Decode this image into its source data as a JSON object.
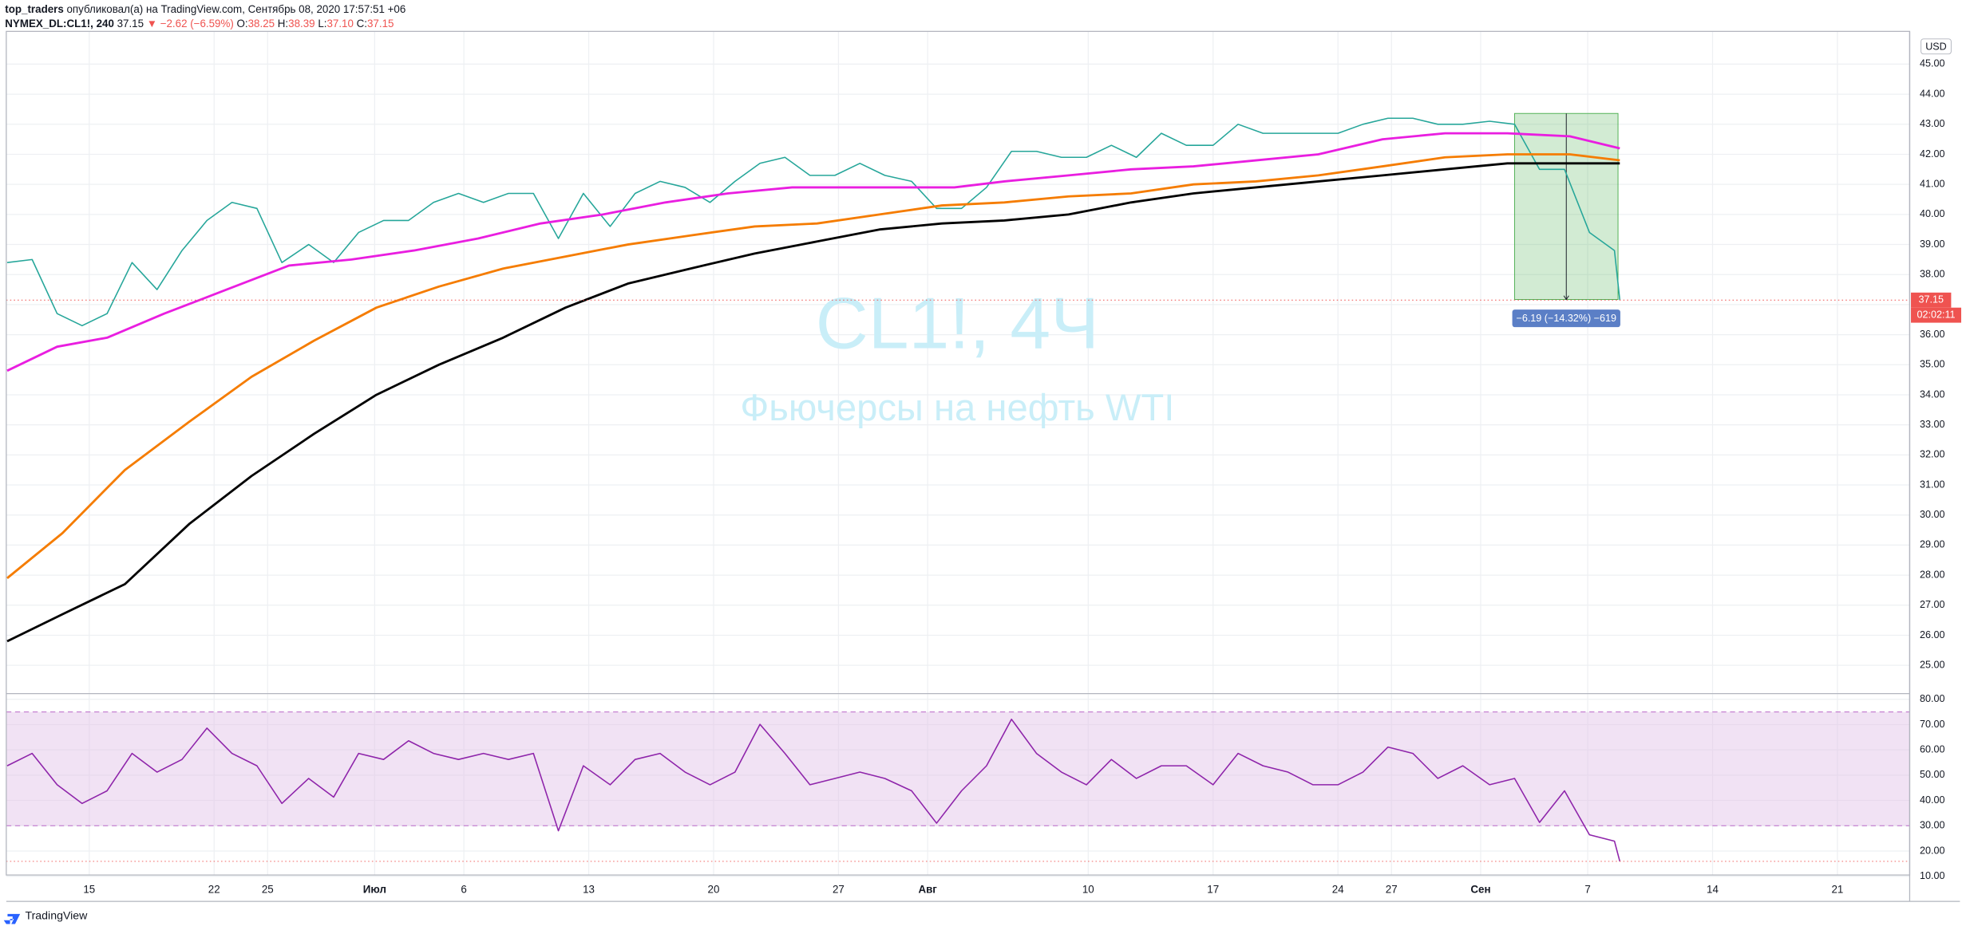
{
  "header": {
    "author": "top_traders",
    "published": "опубликовал(а) на TradingView.com, Сентябрь 08, 2020 17:57:51 +06",
    "symbol": "NYMEX_DL:CL1!, 240",
    "last": "37.15",
    "change": "▼ −2.62 (−6.59%)",
    "ohlc": [
      [
        "O:",
        "38.25"
      ],
      [
        "H:",
        "38.39"
      ],
      [
        "L:",
        "37.10"
      ],
      [
        "C:",
        "37.15"
      ]
    ],
    "footer": "TradingView"
  },
  "chart_data": [
    {
      "type": "line",
      "title": "CL1!, 4Ч",
      "subtitle": "Фьючерсы на нефть WTI",
      "y_axis_label": "USD",
      "price_label": "37.15",
      "countdown": "02:02:11",
      "xlim": [
        10.35,
        117.05
      ],
      "ylim": [
        24.08,
        46.09
      ],
      "yticks": [
        {
          "value": 25,
          "label": "25.00"
        },
        {
          "value": 26,
          "label": "26.00"
        },
        {
          "value": 27,
          "label": "27.00"
        },
        {
          "value": 28,
          "label": "28.00"
        },
        {
          "value": 29,
          "label": "29.00"
        },
        {
          "value": 30,
          "label": "30.00"
        },
        {
          "value": 31,
          "label": "31.00"
        },
        {
          "value": 32,
          "label": "32.00"
        },
        {
          "value": 33,
          "label": "33.00"
        },
        {
          "value": 34,
          "label": "34.00"
        },
        {
          "value": 35,
          "label": "35.00"
        },
        {
          "value": 36,
          "label": "36.00"
        },
        {
          "value": 37,
          "label": "37.00"
        },
        {
          "value": 38,
          "label": "38.00"
        },
        {
          "value": 39,
          "label": "39.00"
        },
        {
          "value": 40,
          "label": "40.00"
        },
        {
          "value": 41,
          "label": "41.00"
        },
        {
          "value": 42,
          "label": "42.00"
        },
        {
          "value": 43,
          "label": "43.00"
        },
        {
          "value": 44,
          "label": "44.00"
        },
        {
          "value": 45,
          "label": "45.00"
        }
      ],
      "grid": true,
      "series": [
        {
          "color": "#26a69a",
          "x": [
            10.4,
            11.8,
            13.2,
            14.6,
            16.0,
            17.4,
            18.8,
            20.2,
            21.6,
            23.0,
            24.4,
            25.8,
            27.3,
            28.7,
            30.1,
            31.5,
            32.9,
            34.3,
            35.7,
            37.1,
            38.5,
            39.9,
            41.3,
            42.7,
            44.2,
            45.6,
            47.0,
            48.4,
            49.8,
            51.2,
            52.6,
            54.0,
            55.4,
            56.8,
            58.2,
            59.6,
            61.1,
            62.5,
            63.9,
            65.3,
            66.7,
            68.1,
            69.5,
            70.9,
            72.3,
            73.7,
            75.1,
            76.5,
            78.0,
            79.4,
            80.8,
            82.2,
            83.6,
            85.0,
            86.4,
            87.8,
            89.2,
            90.6,
            92.0,
            93.5,
            94.9,
            96.3,
            97.7,
            99.1,
            100.5,
            100.8
          ],
          "values": [
            38.4,
            38.5,
            36.7,
            36.3,
            36.7,
            38.4,
            37.5,
            38.8,
            39.8,
            40.4,
            40.2,
            38.4,
            39.0,
            38.4,
            39.4,
            39.8,
            39.8,
            40.4,
            40.7,
            40.4,
            40.7,
            40.7,
            39.2,
            40.7,
            39.6,
            40.7,
            41.1,
            40.9,
            40.4,
            41.1,
            41.7,
            41.9,
            41.3,
            41.3,
            41.7,
            41.3,
            41.1,
            40.2,
            40.2,
            40.9,
            42.1,
            42.1,
            41.9,
            41.9,
            42.3,
            41.9,
            42.7,
            42.3,
            42.3,
            43.0,
            42.7,
            42.7,
            42.7,
            42.7,
            43.0,
            43.2,
            43.2,
            43.0,
            43.0,
            43.1,
            43.0,
            41.5,
            41.5,
            39.4,
            38.8,
            37.15
          ]
        },
        {
          "color": "#e91ee0",
          "x": [
            10.4,
            13.2,
            16.0,
            19.2,
            22.7,
            26.2,
            29.7,
            33.2,
            36.8,
            40.3,
            43.8,
            47.3,
            50.8,
            54.4,
            59.3,
            63.5,
            66.3,
            69.9,
            73.4,
            76.9,
            80.4,
            83.9,
            87.5,
            91.0,
            94.5,
            98.0,
            100.8
          ],
          "values": [
            34.8,
            35.6,
            35.9,
            36.7,
            37.5,
            38.3,
            38.5,
            38.8,
            39.2,
            39.7,
            40.0,
            40.4,
            40.7,
            40.9,
            40.9,
            40.9,
            41.1,
            41.3,
            41.5,
            41.6,
            41.8,
            42.0,
            42.5,
            42.7,
            42.7,
            42.6,
            42.2
          ]
        },
        {
          "color": "#f57c00",
          "x": [
            10.4,
            13.5,
            17.0,
            20.6,
            24.1,
            27.6,
            31.1,
            34.6,
            38.2,
            41.7,
            45.2,
            48.7,
            52.3,
            55.8,
            59.3,
            62.8,
            66.3,
            69.9,
            73.4,
            76.9,
            80.4,
            83.9,
            87.5,
            91.0,
            94.5,
            98.0,
            100.8
          ],
          "values": [
            27.9,
            29.4,
            31.5,
            33.1,
            34.6,
            35.8,
            36.9,
            37.6,
            38.2,
            38.6,
            39.0,
            39.3,
            39.6,
            39.7,
            40.0,
            40.3,
            40.4,
            40.6,
            40.7,
            41.0,
            41.1,
            41.3,
            41.6,
            41.9,
            42.0,
            42.0,
            41.8
          ]
        },
        {
          "color": "#000000",
          "x": [
            10.4,
            13.5,
            17.0,
            20.6,
            24.1,
            27.6,
            31.1,
            34.6,
            38.2,
            41.7,
            45.2,
            48.7,
            52.3,
            55.8,
            59.3,
            62.8,
            66.3,
            69.9,
            73.4,
            76.9,
            80.4,
            83.9,
            87.5,
            91.0,
            94.5,
            98.0,
            100.8
          ],
          "values": [
            25.8,
            26.7,
            27.7,
            29.7,
            31.3,
            32.7,
            34.0,
            35.0,
            35.9,
            36.9,
            37.7,
            38.2,
            38.7,
            39.1,
            39.5,
            39.7,
            39.8,
            40.0,
            40.4,
            40.7,
            40.9,
            41.1,
            41.3,
            41.5,
            41.7,
            41.7,
            41.7
          ]
        }
      ],
      "measure": {
        "label": "−6.19 (−14.32%) −619",
        "x": [
          94.9,
          100.7
        ],
        "y": [
          43.36,
          37.17
        ],
        "color": "#4caf50"
      }
    },
    {
      "type": "line",
      "xlim": [
        10.35,
        117.05
      ],
      "ylim": [
        10.5,
        82
      ],
      "yticks": [
        {
          "value": 10,
          "label": "10.00"
        },
        {
          "value": 20,
          "label": "20.00"
        },
        {
          "value": 30,
          "label": "30.00"
        },
        {
          "value": 40,
          "label": "40.00"
        },
        {
          "value": 50,
          "label": "50.00"
        },
        {
          "value": 60,
          "label": "60.00"
        },
        {
          "value": 70,
          "label": "70.00"
        },
        {
          "value": 80,
          "label": "80.00"
        }
      ],
      "xticks": [
        15,
        22,
        25,
        {
          "value": 31,
          "label": "Июл"
        },
        {
          "value": 36,
          "label": "6"
        },
        {
          "value": 43,
          "label": "13"
        },
        {
          "value": 50,
          "label": "20"
        },
        {
          "value": 57,
          "label": "27"
        },
        {
          "value": 62,
          "label": "Авг"
        },
        {
          "value": 71,
          "label": "10"
        },
        {
          "value": 78,
          "label": "17"
        },
        {
          "value": 85,
          "label": "24"
        },
        {
          "value": 88,
          "label": "27"
        },
        {
          "value": 93,
          "label": "Сен"
        },
        {
          "value": 99,
          "label": "7"
        },
        {
          "value": 106,
          "label": "14"
        },
        {
          "value": 113,
          "label": "21"
        }
      ],
      "grid": true,
      "band": [
        30,
        75
      ],
      "band_color": "#e1bee7",
      "series": [
        {
          "color": "#8e24aa",
          "x": [
            10.4,
            11.8,
            13.2,
            14.6,
            16.0,
            17.4,
            18.8,
            20.2,
            21.6,
            23.0,
            24.4,
            25.8,
            27.3,
            28.7,
            30.1,
            31.5,
            32.9,
            34.3,
            35.7,
            37.1,
            38.5,
            39.9,
            41.3,
            42.7,
            44.2,
            45.6,
            47.0,
            48.4,
            49.8,
            51.2,
            52.6,
            54.0,
            55.4,
            56.8,
            58.2,
            59.6,
            61.1,
            62.5,
            63.9,
            65.3,
            66.7,
            68.1,
            69.5,
            70.9,
            72.3,
            73.7,
            75.1,
            76.5,
            78.0,
            79.4,
            80.8,
            82.2,
            83.6,
            85.0,
            86.4,
            87.8,
            89.2,
            90.6,
            92.0,
            93.5,
            94.9,
            96.3,
            97.7,
            99.1,
            100.5,
            100.8
          ],
          "values": [
            53.7,
            58.6,
            46.2,
            38.8,
            43.8,
            58.6,
            51.2,
            56.2,
            68.6,
            58.6,
            53.7,
            38.8,
            48.7,
            41.3,
            58.6,
            56.2,
            63.6,
            58.6,
            56.2,
            58.6,
            56.2,
            58.6,
            28.0,
            53.7,
            46.2,
            56.2,
            58.6,
            51.2,
            46.2,
            51.2,
            70.1,
            58.6,
            46.2,
            48.7,
            51.2,
            48.7,
            43.8,
            31.0,
            43.8,
            53.7,
            72.1,
            58.6,
            51.2,
            46.2,
            56.2,
            48.7,
            53.7,
            53.7,
            46.2,
            58.6,
            53.7,
            51.2,
            46.2,
            46.2,
            51.2,
            61.1,
            58.6,
            48.7,
            53.7,
            46.2,
            48.7,
            31.3,
            43.8,
            26.4,
            23.9,
            15.9
          ]
        }
      ]
    }
  ]
}
